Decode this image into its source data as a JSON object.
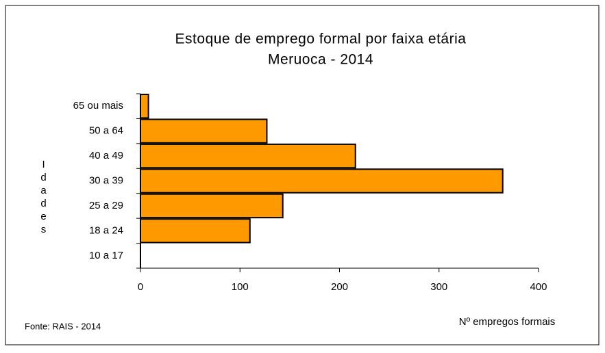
{
  "chart_data": {
    "type": "bar",
    "orientation": "horizontal",
    "title": "Estoque de emprego formal por faixa etária",
    "subtitle": "Meruoca - 2014",
    "categories": [
      "65 ou mais",
      "50 a 64",
      "40 a 49",
      "30 a 39",
      "25 a 29",
      "18 a 24",
      "10 a 17"
    ],
    "values": [
      8,
      127,
      216,
      364,
      143,
      110,
      0
    ],
    "color": "#ff9900",
    "xlim": [
      0,
      400
    ],
    "xticks": [
      0,
      100,
      200,
      300,
      400
    ],
    "ylabel": "Idades",
    "xlabel": "Nº empregos formais",
    "source": "Fonte: RAIS - 2014"
  }
}
